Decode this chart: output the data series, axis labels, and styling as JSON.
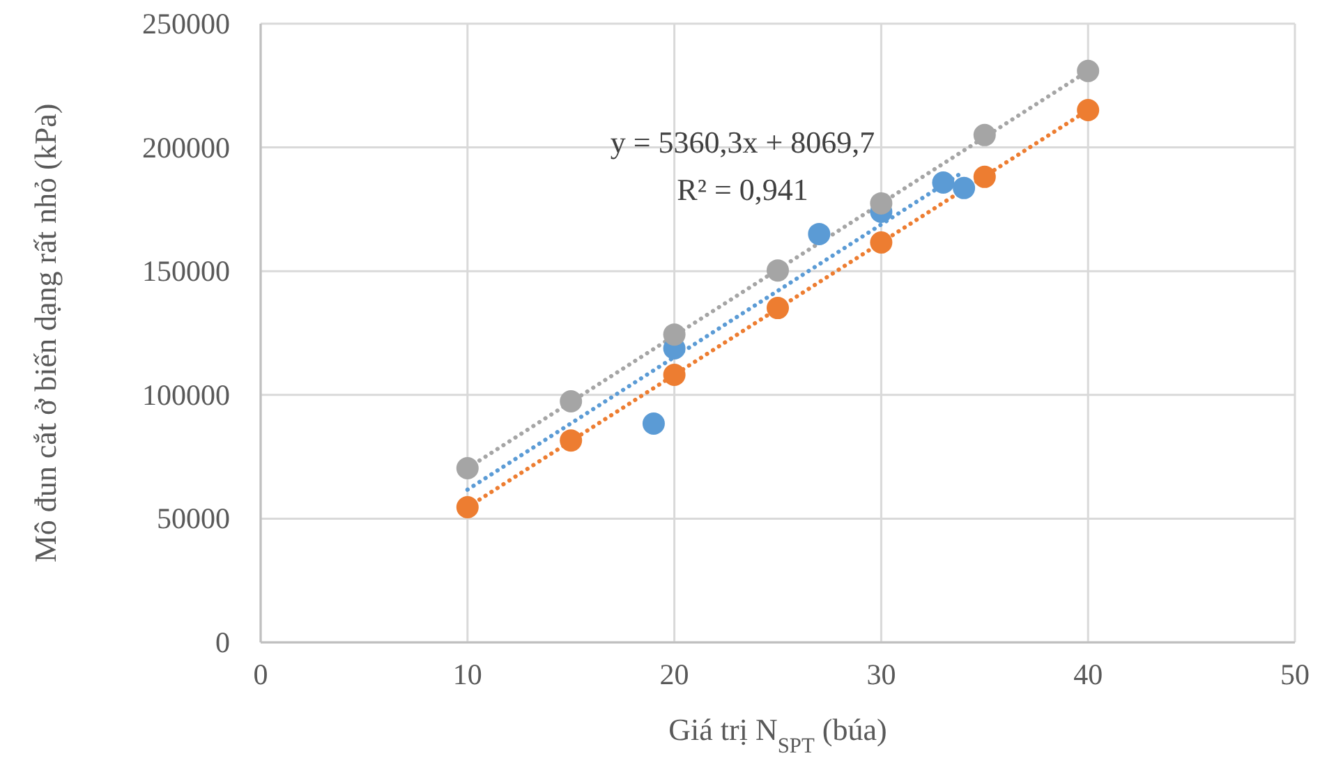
{
  "chart_data": {
    "type": "scatter",
    "xlabel": "Giá trị N$_{SPT}$ (búa)",
    "ylabel": "Mô đun cắt ở biến dạng rất nhỏ  (kPa)",
    "xlim": [
      0,
      50
    ],
    "xticks": [
      0,
      10,
      20,
      30,
      40,
      50
    ],
    "ylim": [
      0,
      250000
    ],
    "yticks": [
      0,
      50000,
      100000,
      150000,
      200000,
      250000
    ],
    "grid": true,
    "annotations": [
      "y = 5360,3x + 8069,7",
      "R² = 0,941"
    ],
    "series": [
      {
        "type": "line",
        "line_style": "dotted",
        "marker": "none",
        "color": "#5b9bd5",
        "x": [
          10,
          34
        ],
        "values": [
          61700,
          190300
        ]
      },
      {
        "type": "line",
        "line_style": "dotted",
        "marker": "none",
        "color": "#ed7d31",
        "x": [
          10,
          40
        ],
        "values": [
          54600,
          215100
        ]
      },
      {
        "type": "line",
        "line_style": "dotted",
        "marker": "none",
        "color": "#a5a5a5",
        "x": [
          10,
          40
        ],
        "values": [
          70400,
          230900
        ]
      },
      {
        "marker": "circle",
        "color": "#5b9bd5",
        "x": [
          19,
          20,
          27,
          30,
          33,
          34
        ],
        "values": [
          88400,
          118800,
          165000,
          174000,
          185800,
          183600
        ]
      },
      {
        "marker": "circle",
        "color": "#ed7d31",
        "x": [
          10,
          15,
          20,
          25,
          30,
          35,
          40
        ],
        "values": [
          54600,
          81600,
          108100,
          135100,
          161600,
          188100,
          215100
        ]
      },
      {
        "marker": "circle",
        "color": "#a5a5a5",
        "x": [
          10,
          15,
          20,
          25,
          30,
          35,
          40
        ],
        "values": [
          70400,
          97400,
          124400,
          150300,
          177400,
          205000,
          230900
        ]
      }
    ]
  }
}
